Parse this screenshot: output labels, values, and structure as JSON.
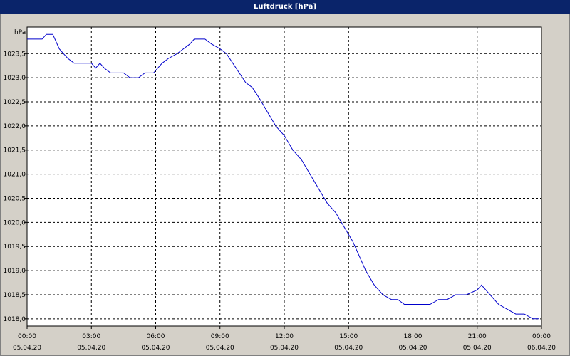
{
  "window": {
    "title": "Luftdruck [hPa]"
  },
  "chart_data": {
    "type": "line",
    "title": "Luftdruck [hPa]",
    "ylabel": "hPa",
    "xlabel": "",
    "xlim_hours": [
      0,
      24
    ],
    "ylim": [
      1017.85,
      1024.05
    ],
    "grid": true,
    "y_ticks": [
      {
        "value": 1023.5,
        "label": "1023,5"
      },
      {
        "value": 1023.0,
        "label": "1023,0"
      },
      {
        "value": 1022.5,
        "label": "1022,5"
      },
      {
        "value": 1022.0,
        "label": "1022,0"
      },
      {
        "value": 1021.5,
        "label": "1021,5"
      },
      {
        "value": 1021.0,
        "label": "1021,0"
      },
      {
        "value": 1020.5,
        "label": "1020,5"
      },
      {
        "value": 1020.0,
        "label": "1020,0"
      },
      {
        "value": 1019.5,
        "label": "1019,5"
      },
      {
        "value": 1019.0,
        "label": "1019,0"
      },
      {
        "value": 1018.5,
        "label": "1018,5"
      },
      {
        "value": 1018.0,
        "label": "1018,0"
      }
    ],
    "x_ticks": [
      {
        "time": "00:00",
        "date": "05.04.20"
      },
      {
        "time": "03:00",
        "date": "05.04.20"
      },
      {
        "time": "06:00",
        "date": "05.04.20"
      },
      {
        "time": "09:00",
        "date": "05.04.20"
      },
      {
        "time": "12:00",
        "date": "05.04.20"
      },
      {
        "time": "15:00",
        "date": "05.04.20"
      },
      {
        "time": "18:00",
        "date": "05.04.20"
      },
      {
        "time": "21:00",
        "date": "05.04.20"
      },
      {
        "time": "00:00",
        "date": "06.04.20"
      }
    ],
    "series": [
      {
        "color": "#0000cc",
        "x_hours": [
          0.0,
          0.7,
          0.9,
          1.2,
          1.5,
          1.7,
          1.9,
          2.2,
          2.6,
          3.0,
          3.2,
          3.4,
          3.6,
          3.9,
          4.2,
          4.5,
          4.8,
          5.2,
          5.5,
          5.9,
          6.3,
          6.6,
          7.0,
          7.3,
          7.6,
          7.8,
          8.0,
          8.3,
          8.6,
          9.0,
          9.3,
          9.6,
          9.9,
          10.2,
          10.5,
          10.8,
          11.2,
          11.6,
          12.0,
          12.4,
          12.8,
          13.2,
          13.6,
          14.0,
          14.4,
          14.8,
          15.2,
          15.5,
          15.8,
          16.2,
          16.6,
          17.0,
          17.3,
          17.6,
          18.0,
          18.4,
          18.8,
          19.2,
          19.6,
          20.0,
          20.5,
          21.0,
          21.2,
          21.4,
          21.6,
          22.0,
          22.4,
          22.8,
          23.2,
          23.6,
          23.9
        ],
        "values": [
          1023.8,
          1023.8,
          1023.9,
          1023.9,
          1023.6,
          1023.5,
          1023.4,
          1023.3,
          1023.3,
          1023.3,
          1023.2,
          1023.3,
          1023.2,
          1023.1,
          1023.1,
          1023.1,
          1023.0,
          1023.0,
          1023.1,
          1023.1,
          1023.3,
          1023.4,
          1023.5,
          1023.6,
          1023.7,
          1023.8,
          1023.8,
          1023.8,
          1023.7,
          1023.6,
          1023.5,
          1023.3,
          1023.1,
          1022.9,
          1022.8,
          1022.6,
          1022.3,
          1022.0,
          1021.8,
          1021.5,
          1021.3,
          1021.0,
          1020.7,
          1020.4,
          1020.2,
          1019.9,
          1019.6,
          1019.3,
          1019.0,
          1018.7,
          1018.5,
          1018.4,
          1018.4,
          1018.3,
          1018.3,
          1018.3,
          1018.3,
          1018.4,
          1018.4,
          1018.5,
          1018.5,
          1018.6,
          1018.7,
          1018.6,
          1018.5,
          1018.3,
          1018.2,
          1018.1,
          1018.1,
          1018.0,
          1018.0
        ]
      }
    ]
  }
}
